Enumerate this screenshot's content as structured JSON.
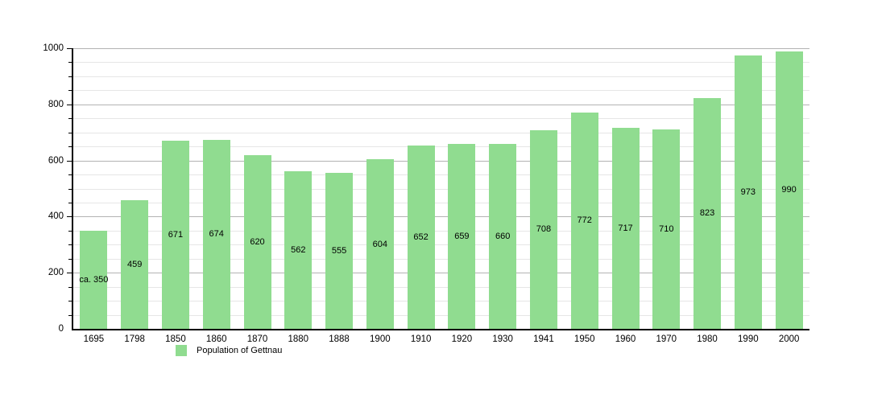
{
  "chart_data": {
    "type": "bar",
    "title": "",
    "xlabel": "",
    "ylabel": "",
    "legend": "Population of Gettnau",
    "legend_position": "bottom-left",
    "grid": "on",
    "categories": [
      "1695",
      "1798",
      "1850",
      "1860",
      "1870",
      "1880",
      "1888",
      "1900",
      "1910",
      "1920",
      "1930",
      "1941",
      "1950",
      "1960",
      "1970",
      "1980",
      "1990",
      "2000"
    ],
    "values": [
      350,
      459,
      671,
      674,
      620,
      562,
      555,
      604,
      652,
      659,
      660,
      708,
      772,
      717,
      710,
      823,
      973,
      990
    ],
    "value_labels": [
      "ca. 350",
      "459",
      "671",
      "674",
      "620",
      "562",
      "555",
      "604",
      "652",
      "659",
      "660",
      "708",
      "772",
      "717",
      "710",
      "823",
      "973",
      "990"
    ],
    "ylim": [
      0,
      1000
    ],
    "y_major_ticks": [
      0,
      200,
      400,
      600,
      800,
      1000
    ],
    "y_minor_step": 50,
    "colors": {
      "bar": "#90dc90",
      "grid_minor": "#e6e6e6",
      "grid_major": "#b3b3b3",
      "axis": "#000000",
      "text": "#000000"
    }
  }
}
